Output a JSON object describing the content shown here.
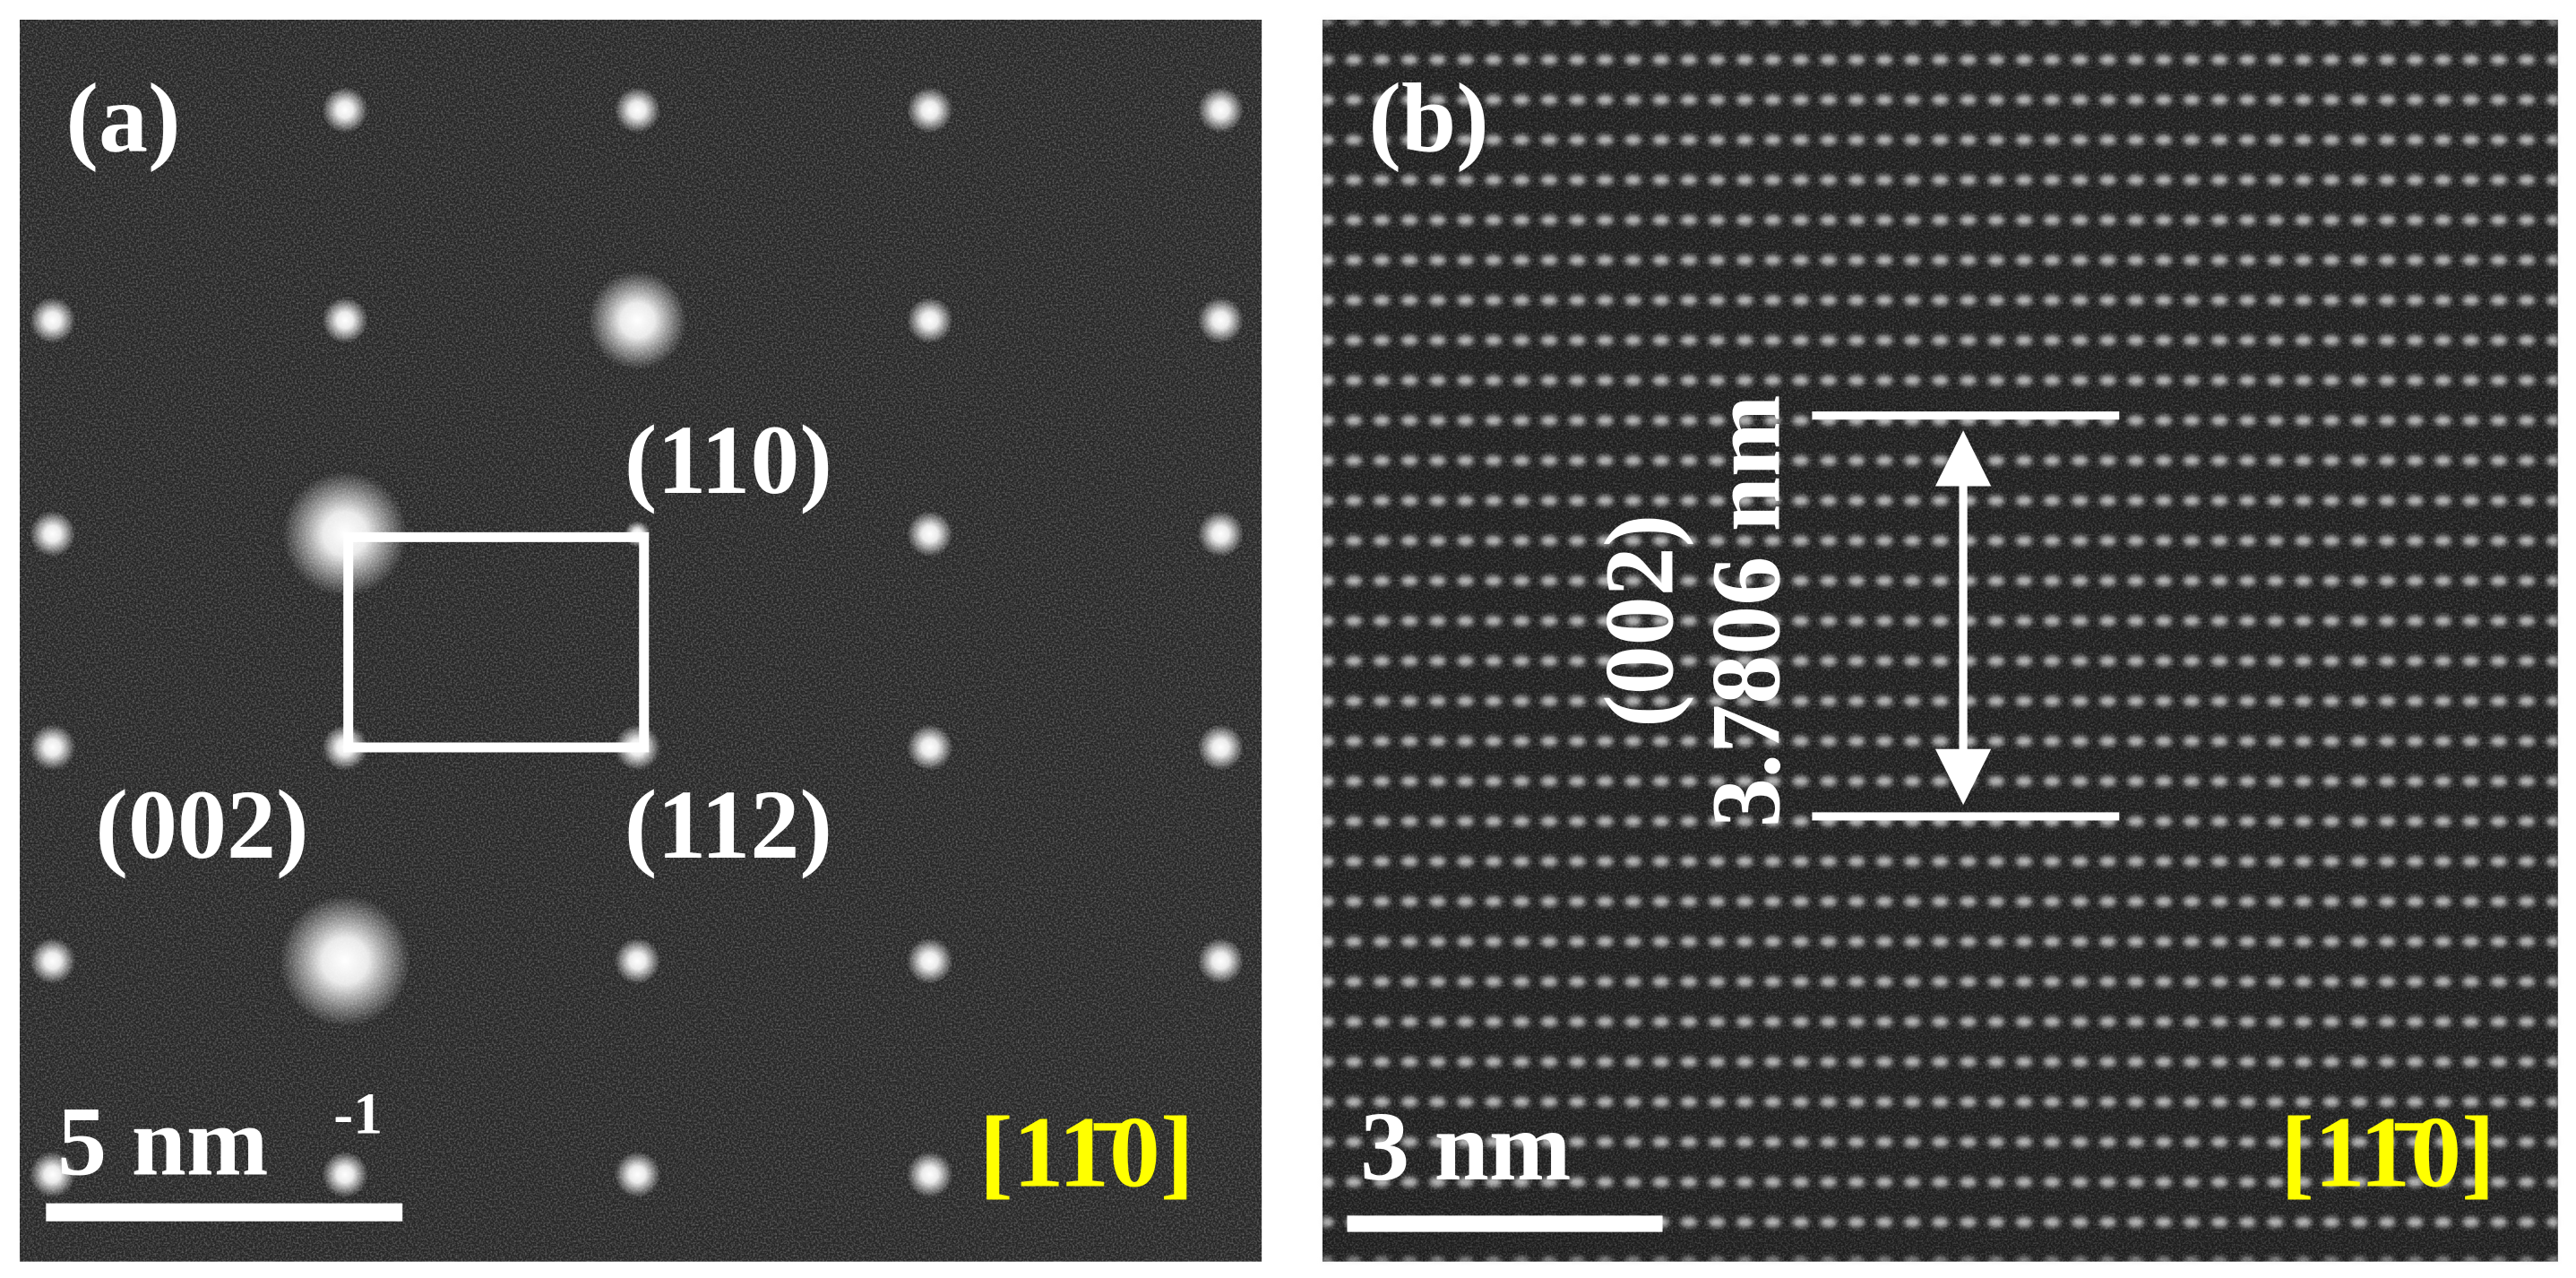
{
  "panel_a": {
    "label": "(a)",
    "spots": {
      "top_right": "(110)",
      "bottom_left": "(002)",
      "bottom_right": "(112)"
    },
    "scale_bar": {
      "text": "5 nm",
      "exponent": "-1"
    },
    "zone_axis": "[11̄0]"
  },
  "panel_b": {
    "label": "(b)",
    "plane": "(002)",
    "spacing": "3.7806 nm",
    "scale_bar": {
      "text": "3 nm"
    },
    "zone_axis": "[11̄0]"
  }
}
